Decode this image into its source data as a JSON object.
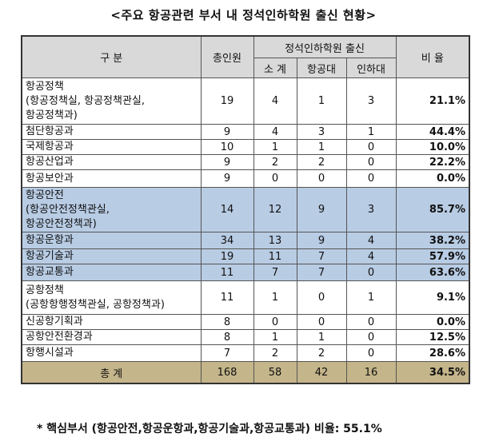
{
  "title": "<주요 항공관련 부서 내 정석인하학원 출신 현황>",
  "headers": {
    "category": "구 분",
    "total_staff": "총인원",
    "group": "정석인하학원 출신",
    "subtotal": "소 계",
    "hangkong": "항공대",
    "inha": "인하대",
    "ratio": "비 율"
  },
  "rows": [
    {
      "label": "항공정책\n(항공정책실, 항공정책관실,\n항공정책과)",
      "total": "19",
      "sub": "4",
      "kau": "1",
      "inha": "3",
      "ratio": "21.1%",
      "highlight": false
    },
    {
      "label": "첨단항공과",
      "total": "9",
      "sub": "4",
      "kau": "3",
      "inha": "1",
      "ratio": "44.4%",
      "highlight": false
    },
    {
      "label": "국제항공과",
      "total": "10",
      "sub": "1",
      "kau": "1",
      "inha": "0",
      "ratio": "10.0%",
      "highlight": false
    },
    {
      "label": "항공산업과",
      "total": "9",
      "sub": "2",
      "kau": "2",
      "inha": "0",
      "ratio": "22.2%",
      "highlight": false
    },
    {
      "label": "항공보안과",
      "total": "9",
      "sub": "0",
      "kau": "0",
      "inha": "0",
      "ratio": "0.0%",
      "highlight": false
    },
    {
      "label": "항공안전\n(항공안전정책관실,\n항공안전정책과)",
      "total": "14",
      "sub": "12",
      "kau": "9",
      "inha": "3",
      "ratio": "85.7%",
      "highlight": true
    },
    {
      "label": "항공운항과",
      "total": "34",
      "sub": "13",
      "kau": "9",
      "inha": "4",
      "ratio": "38.2%",
      "highlight": true
    },
    {
      "label": "항공기술과",
      "total": "19",
      "sub": "11",
      "kau": "7",
      "inha": "4",
      "ratio": "57.9%",
      "highlight": true
    },
    {
      "label": "항공교통과",
      "total": "11",
      "sub": "7",
      "kau": "7",
      "inha": "0",
      "ratio": "63.6%",
      "highlight": true
    },
    {
      "label": "공항정책\n(공항항행정책관실, 공항정책과)",
      "total": "11",
      "sub": "1",
      "kau": "0",
      "inha": "1",
      "ratio": "9.1%",
      "highlight": false
    },
    {
      "label": "신공항기획과",
      "total": "8",
      "sub": "0",
      "kau": "0",
      "inha": "0",
      "ratio": "0.0%",
      "highlight": false
    },
    {
      "label": "공항안전환경과",
      "total": "8",
      "sub": "1",
      "kau": "1",
      "inha": "0",
      "ratio": "12.5%",
      "highlight": false
    },
    {
      "label": "항행시설과",
      "total": "7",
      "sub": "2",
      "kau": "2",
      "inha": "0",
      "ratio": "28.6%",
      "highlight": false
    }
  ],
  "total_row": {
    "label": "총 계",
    "total": "168",
    "sub": "58",
    "kau": "42",
    "inha": "16",
    "ratio": "34.5%"
  },
  "note": "* 핵심부서 (항공안전,항공운항과,항공기술과,항공교통과) 비율: 55.1%",
  "colors": {
    "header": "#d9d9d9",
    "highlight": "#b8cce4",
    "total": "#c4b58a"
  }
}
